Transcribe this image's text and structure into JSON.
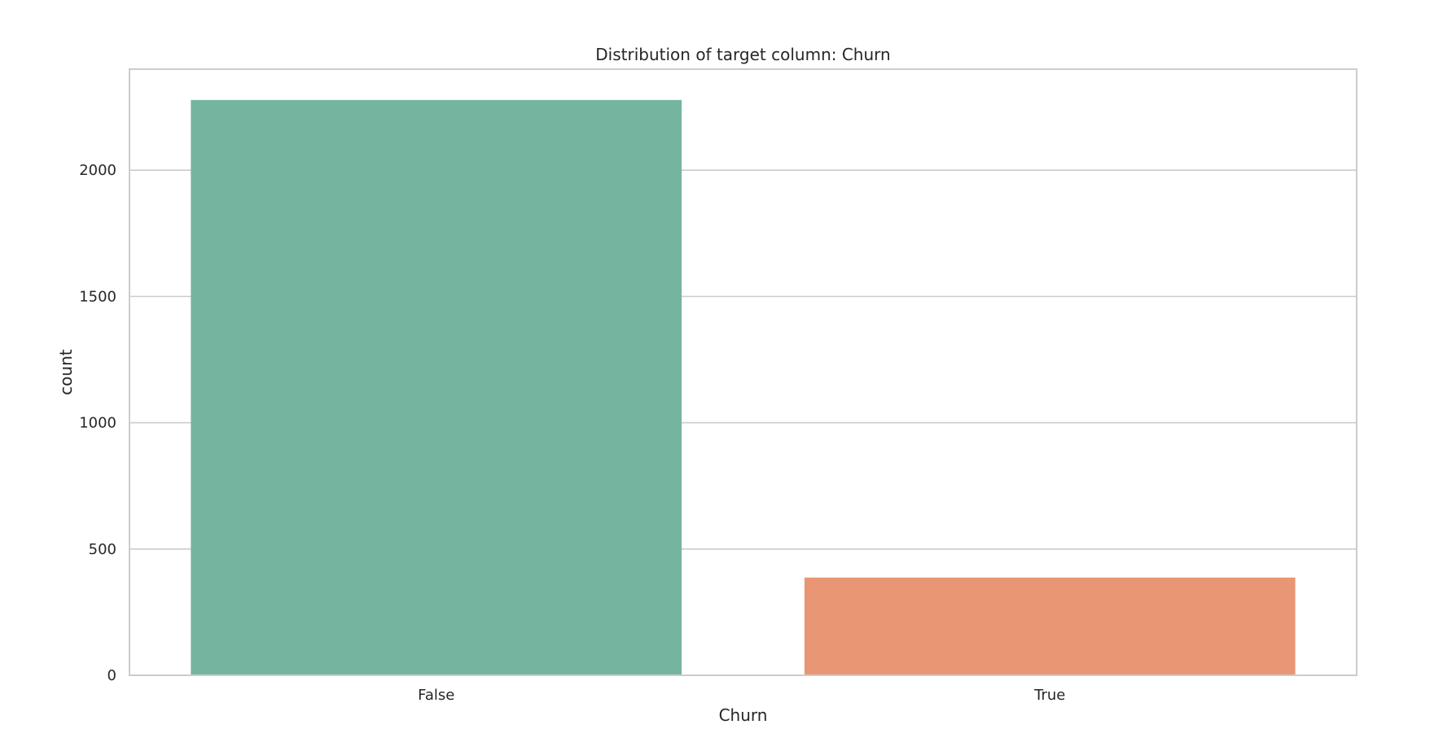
{
  "chart_data": {
    "type": "bar",
    "title": "Distribution of target column: Churn",
    "xlabel": "Churn",
    "ylabel": "count",
    "categories": [
      "False",
      "True"
    ],
    "values": [
      2278,
      387
    ],
    "colors": [
      "#75b5a0",
      "#e89674"
    ],
    "ylim": [
      0,
      2400
    ],
    "yticks": [
      0,
      500,
      1000,
      1500,
      2000
    ],
    "grid": true,
    "legend": "none"
  }
}
